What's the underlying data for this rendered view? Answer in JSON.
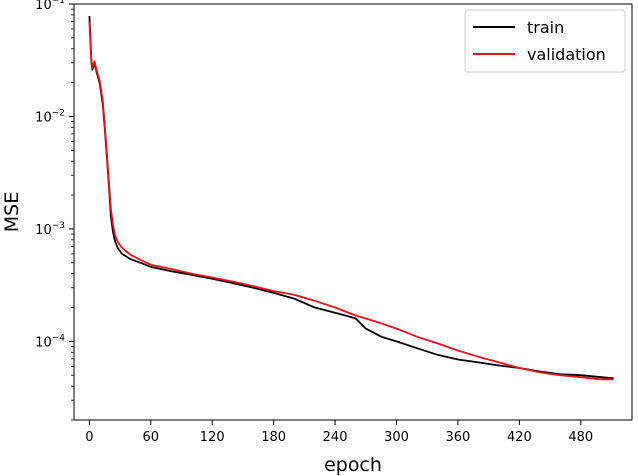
{
  "chart_data": {
    "type": "line",
    "xlabel": "epoch",
    "ylabel": "MSE",
    "yscale": "log",
    "xlim": [
      -15,
      530
    ],
    "ylim": [
      2e-05,
      0.1
    ],
    "xticks": [
      0,
      60,
      120,
      180,
      240,
      300,
      360,
      420,
      480
    ],
    "yticks": [
      {
        "value": 0.1,
        "base": "10",
        "exp": "−1"
      },
      {
        "value": 0.01,
        "base": "10",
        "exp": "−2"
      },
      {
        "value": 0.001,
        "base": "10",
        "exp": "−3"
      },
      {
        "value": 0.0001,
        "base": "10",
        "exp": "−4"
      }
    ],
    "legend": {
      "position": "top-right"
    },
    "series": [
      {
        "name": "train",
        "color": "#000000",
        "points": [
          [
            0,
            0.078
          ],
          [
            1,
            0.05
          ],
          [
            2,
            0.03
          ],
          [
            3,
            0.026
          ],
          [
            5,
            0.03
          ],
          [
            7,
            0.025
          ],
          [
            10,
            0.02
          ],
          [
            13,
            0.013
          ],
          [
            15,
            0.008
          ],
          [
            17,
            0.0045
          ],
          [
            19,
            0.0025
          ],
          [
            21,
            0.0013
          ],
          [
            23,
            0.00095
          ],
          [
            25,
            0.00078
          ],
          [
            28,
            0.00067
          ],
          [
            32,
            0.0006
          ],
          [
            40,
            0.00054
          ],
          [
            50,
            0.0005
          ],
          [
            60,
            0.00046
          ],
          [
            80,
            0.00042
          ],
          [
            100,
            0.00039
          ],
          [
            120,
            0.00036
          ],
          [
            140,
            0.00033
          ],
          [
            160,
            0.0003
          ],
          [
            180,
            0.00027
          ],
          [
            200,
            0.00024
          ],
          [
            220,
            0.0002
          ],
          [
            240,
            0.00018
          ],
          [
            250,
            0.00017
          ],
          [
            260,
            0.00016
          ],
          [
            270,
            0.00013
          ],
          [
            285,
            0.00011
          ],
          [
            300,
            0.0001
          ],
          [
            320,
            8.7e-05
          ],
          [
            340,
            7.6e-05
          ],
          [
            360,
            6.9e-05
          ],
          [
            380,
            6.5e-05
          ],
          [
            400,
            6.1e-05
          ],
          [
            420,
            5.8e-05
          ],
          [
            440,
            5.4e-05
          ],
          [
            460,
            5.1e-05
          ],
          [
            480,
            5e-05
          ],
          [
            500,
            4.8e-05
          ],
          [
            512,
            4.7e-05
          ]
        ]
      },
      {
        "name": "validation",
        "color": "#e8101a",
        "points": [
          [
            0,
            0.07
          ],
          [
            1,
            0.045
          ],
          [
            2,
            0.032
          ],
          [
            3,
            0.027
          ],
          [
            5,
            0.031
          ],
          [
            7,
            0.026
          ],
          [
            10,
            0.021
          ],
          [
            13,
            0.014
          ],
          [
            15,
            0.0085
          ],
          [
            17,
            0.0048
          ],
          [
            19,
            0.0027
          ],
          [
            21,
            0.0015
          ],
          [
            23,
            0.0011
          ],
          [
            25,
            0.00088
          ],
          [
            28,
            0.00076
          ],
          [
            32,
            0.00068
          ],
          [
            40,
            0.00059
          ],
          [
            50,
            0.00053
          ],
          [
            60,
            0.00048
          ],
          [
            80,
            0.00044
          ],
          [
            100,
            0.0004
          ],
          [
            120,
            0.00037
          ],
          [
            140,
            0.00034
          ],
          [
            160,
            0.00031
          ],
          [
            180,
            0.00028
          ],
          [
            200,
            0.00026
          ],
          [
            220,
            0.00023
          ],
          [
            240,
            0.0002
          ],
          [
            260,
            0.00017
          ],
          [
            280,
            0.00015
          ],
          [
            300,
            0.00013
          ],
          [
            320,
            0.00011
          ],
          [
            340,
            9.6e-05
          ],
          [
            360,
            8.3e-05
          ],
          [
            380,
            7.3e-05
          ],
          [
            400,
            6.5e-05
          ],
          [
            420,
            5.8e-05
          ],
          [
            440,
            5.3e-05
          ],
          [
            460,
            5e-05
          ],
          [
            480,
            4.8e-05
          ],
          [
            500,
            4.6e-05
          ],
          [
            512,
            4.6e-05
          ]
        ]
      }
    ]
  }
}
